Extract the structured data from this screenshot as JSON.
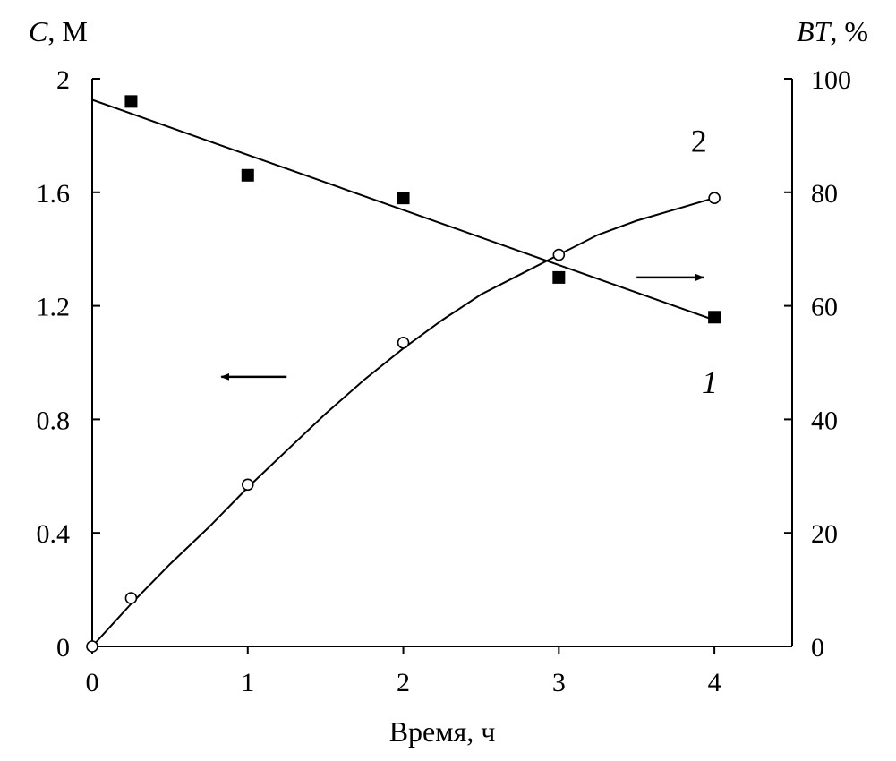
{
  "chart_data": {
    "type": "scatter",
    "xlabel": "Время, ч",
    "ylabel_left": {
      "italic": "C",
      "rest": ", М"
    },
    "ylabel_right": {
      "italic": "BT",
      "rest": ", %"
    },
    "xlim": [
      0,
      4.5
    ],
    "ylim_left": [
      0,
      2
    ],
    "ylim_right": [
      0,
      100
    ],
    "x_ticks": [
      0,
      1,
      2,
      3,
      4
    ],
    "x_tick_labels": [
      "0",
      "1",
      "2",
      "3",
      "4"
    ],
    "y_left_ticks": [
      0,
      0.4,
      0.8,
      1.2,
      1.6,
      2
    ],
    "y_left_tick_labels": [
      "0",
      "0.4",
      "0.8",
      "1.2",
      "1.6",
      "2"
    ],
    "y_right_ticks": [
      0,
      20,
      40,
      60,
      80,
      100
    ],
    "y_right_tick_labels": [
      "0",
      "20",
      "40",
      "60",
      "80",
      "100"
    ],
    "grid": false,
    "series": [
      {
        "name": "1",
        "axis": "left",
        "marker": "open-circle",
        "x": [
          0,
          0.25,
          1,
          2,
          3,
          4
        ],
        "y": [
          0,
          0.17,
          0.57,
          1.07,
          1.38,
          1.58
        ],
        "fit": {
          "x": [
            0,
            0.25,
            0.5,
            0.75,
            1,
            1.25,
            1.5,
            1.75,
            2,
            2.25,
            2.5,
            2.75,
            3,
            3.25,
            3.5,
            3.75,
            4
          ],
          "y": [
            0,
            0.15,
            0.29,
            0.42,
            0.56,
            0.69,
            0.82,
            0.94,
            1.05,
            1.15,
            1.24,
            1.31,
            1.38,
            1.45,
            1.5,
            1.54,
            1.58
          ]
        },
        "label": "1",
        "label_pos": {
          "x": 3.97,
          "y": 0.93
        }
      },
      {
        "name": "2",
        "axis": "right",
        "marker": "filled-square",
        "x": [
          0.25,
          1,
          2,
          3,
          4
        ],
        "y": [
          96,
          83,
          79,
          65,
          58
        ],
        "fit": {
          "x": [
            0,
            4
          ],
          "y": [
            96.3,
            57.5
          ]
        },
        "label": "2",
        "label_pos": {
          "x": 3.9,
          "y": 89
        }
      }
    ],
    "arrows": [
      {
        "direction": "left",
        "x1": 1.25,
        "x2": 0.83,
        "y_left": 0.95
      },
      {
        "direction": "right",
        "x1": 3.5,
        "x2": 3.93,
        "y_left": 1.3
      }
    ]
  }
}
